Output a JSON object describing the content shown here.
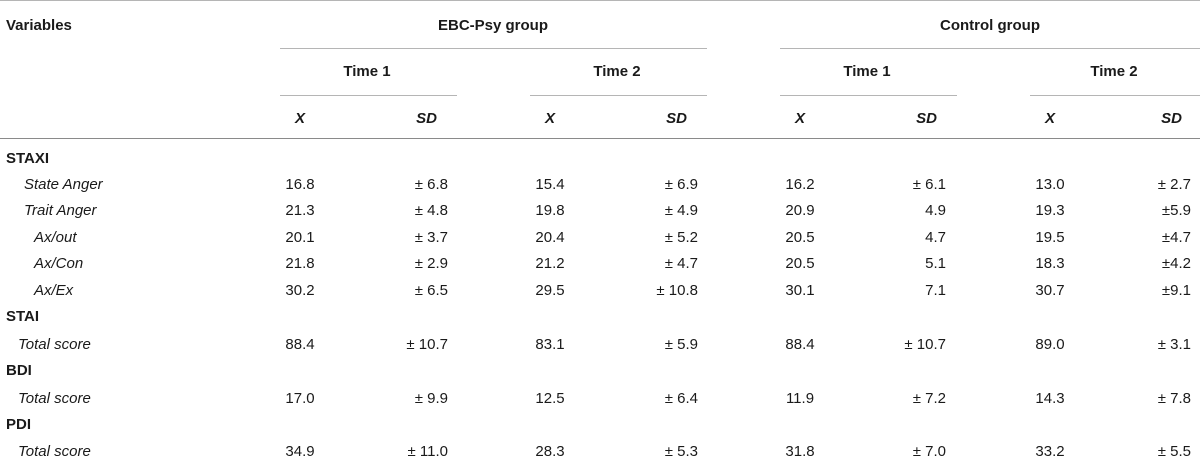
{
  "header": {
    "variables": "Variables",
    "groups": [
      {
        "label": "EBC-Psy group",
        "times": [
          {
            "label": "Time 1",
            "x_label": "X",
            "sd_label": "SD"
          },
          {
            "label": "Time 2",
            "x_label": "X",
            "sd_label": "SD"
          }
        ]
      },
      {
        "label": "Control group",
        "times": [
          {
            "label": "Time 1",
            "x_label": "X",
            "sd_label": "SD"
          },
          {
            "label": "Time 2",
            "x_label": "X",
            "sd_label": "SD"
          }
        ]
      }
    ]
  },
  "sections": [
    {
      "title": "STAXI",
      "rows": [
        {
          "label": "State Anger",
          "values": [
            "16.8",
            "± 6.8",
            "15.4",
            "± 6.9",
            "16.2",
            "± 6.1",
            "13.0",
            "± 2.7"
          ]
        },
        {
          "label": "Trait Anger",
          "values": [
            "21.3",
            "± 4.8",
            "19.8",
            "± 4.9",
            "20.9",
            "4.9",
            "19.3",
            "±5.9"
          ]
        },
        {
          "label": "Ax/out",
          "values": [
            "20.1",
            "± 3.7",
            "20.4",
            "± 5.2",
            "20.5",
            "4.7",
            "19.5",
            "±4.7"
          ]
        },
        {
          "label": "Ax/Con",
          "values": [
            "21.8",
            "± 2.9",
            "21.2",
            "± 4.7",
            "20.5",
            "5.1",
            "18.3",
            "±4.2"
          ]
        },
        {
          "label": "Ax/Ex",
          "values": [
            "30.2",
            "± 6.5",
            "29.5",
            "± 10.8",
            "30.1",
            "7.1",
            "30.7",
            "±9.1"
          ]
        }
      ]
    },
    {
      "title": "STAI",
      "rows": [
        {
          "label": "Total score",
          "values": [
            "88.4",
            "± 10.7",
            "83.1",
            "± 5.9",
            "88.4",
            "± 10.7",
            "89.0",
            "± 3.1"
          ]
        }
      ]
    },
    {
      "title": "BDI",
      "rows": [
        {
          "label": "Total score",
          "values": [
            "17.0",
            "± 9.9",
            "12.5",
            "± 6.4",
            "11.9",
            "± 7.2",
            "14.3",
            "± 7.8"
          ]
        }
      ]
    },
    {
      "title": "PDI",
      "rows": [
        {
          "label": "Total score",
          "values": [
            "34.9",
            "± 11.0",
            "28.3",
            "± 5.3",
            "31.8",
            "± 7.0",
            "33.2",
            "± 5.5"
          ]
        }
      ]
    }
  ]
}
